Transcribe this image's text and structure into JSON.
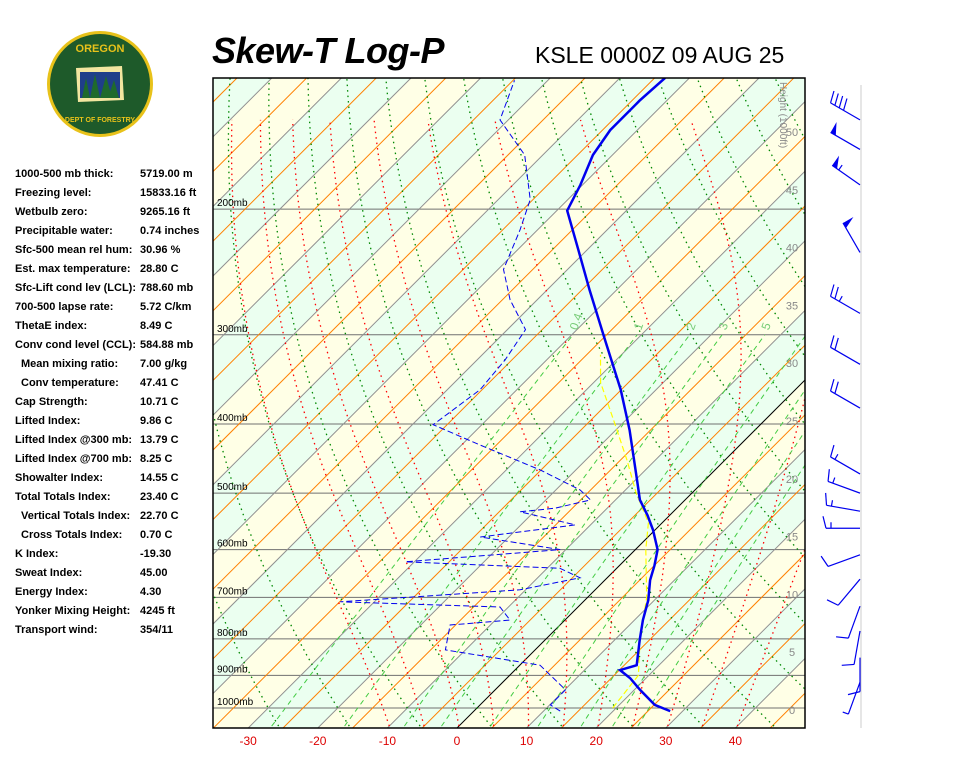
{
  "header": {
    "title": "Skew-T Log-P",
    "station": "KSLE 0000Z 09 AUG 25",
    "logo_text": "OREGON DEPARTMENT OF FORESTRY"
  },
  "stats": [
    {
      "label": "1000-500 mb thick:",
      "value": "5719.00 m"
    },
    {
      "label": "Freezing level:",
      "value": "15833.16 ft"
    },
    {
      "label": "Wetbulb zero:",
      "value": "9265.16 ft"
    },
    {
      "label": "Precipitable water:",
      "value": "0.74 inches"
    },
    {
      "label": "Sfc-500 mean rel hum:",
      "value": "30.96 %"
    },
    {
      "label": "Est. max temperature:",
      "value": "28.80 C"
    },
    {
      "label": "Sfc-Lift cond lev (LCL):",
      "value": "788.60 mb"
    },
    {
      "label": "700-500 lapse rate:",
      "value": "5.72 C/km"
    },
    {
      "label": "ThetaE index:",
      "value": "8.49 C"
    },
    {
      "label": "Conv cond level (CCL):",
      "value": "584.88 mb"
    },
    {
      "label": "Mean mixing ratio:",
      "value": "7.00 g/kg",
      "indent": true
    },
    {
      "label": "Conv temperature:",
      "value": "47.41 C",
      "indent": true
    },
    {
      "label": "Cap Strength:",
      "value": "10.71 C"
    },
    {
      "label": "Lifted Index:",
      "value": "9.86 C"
    },
    {
      "label": "Lifted Index @300 mb:",
      "value": "13.79 C"
    },
    {
      "label": "Lifted Index @700 mb:",
      "value": "8.25 C"
    },
    {
      "label": "Showalter Index:",
      "value": "14.55 C"
    },
    {
      "label": "Total Totals Index:",
      "value": "23.40 C"
    },
    {
      "label": "Vertical Totals Index:",
      "value": "22.70 C",
      "indent": true
    },
    {
      "label": "Cross Totals Index:",
      "value": "0.70 C",
      "indent": true
    },
    {
      "label": "K Index:",
      "value": "-19.30"
    },
    {
      "label": "Sweat Index:",
      "value": "45.00"
    },
    {
      "label": "Energy Index:",
      "value": "4.30"
    },
    {
      "label": "Yonker Mixing Height:",
      "value": "4245 ft"
    },
    {
      "label": "Transport wind:",
      "value": "354/11"
    }
  ],
  "chart_data": {
    "type": "line",
    "title": "Skew-T Log-P",
    "x_ticks": [
      "-30",
      "-20",
      "-10",
      "0",
      "10",
      "20",
      "30",
      "40"
    ],
    "x_tick_values": [
      -30,
      -20,
      -10,
      0,
      10,
      20,
      30,
      40
    ],
    "pressure_levels": [
      200,
      300,
      400,
      500,
      600,
      700,
      800,
      900,
      1000
    ],
    "pressure_labels": [
      "200mb",
      "300mb",
      "400mb",
      "500mb",
      "600mb",
      "700mb",
      "800mb",
      "900mb",
      "1000mb"
    ],
    "height_axis_label": "Height (1000ft)",
    "height_ticks": [
      "0",
      "5",
      "10",
      "15",
      "20",
      "25",
      "30",
      "35",
      "40",
      "45",
      "50"
    ],
    "mixing_ratio_labels": [
      "0.4",
      "1",
      "2",
      "3",
      "5"
    ],
    "mixing_ratio_values": [
      0.4,
      1,
      2,
      3,
      5
    ],
    "colors": {
      "temperature": "#0000ee",
      "dewpoint": "#0000ee",
      "parcel": "#ffff00",
      "isotherm": "#808080",
      "orange": "#ff8000",
      "dry_adiabat": "#008800",
      "moist": "#ff0000",
      "mixing": "#44cc44",
      "band1": "#ffffe6",
      "band2": "#ebfff0"
    },
    "series": [
      {
        "name": "temperature",
        "points": [
          [
            1010,
            28.2
          ],
          [
            990,
            25.1
          ],
          [
            943,
            20.8
          ],
          [
            908,
            17.7
          ],
          [
            885,
            15.1
          ],
          [
            871,
            16.8
          ],
          [
            803,
            13.6
          ],
          [
            753,
            11.2
          ],
          [
            706,
            9.1
          ],
          [
            662,
            6.5
          ],
          [
            631,
            5.0
          ],
          [
            600,
            3.2
          ],
          [
            563,
            -0.3
          ],
          [
            537,
            -3.2
          ],
          [
            511,
            -6.5
          ],
          [
            479,
            -9.8
          ],
          [
            408,
            -18.0
          ],
          [
            358,
            -25.1
          ],
          [
            305,
            -34.5
          ],
          [
            260,
            -43.8
          ],
          [
            228,
            -51.3
          ],
          [
            201,
            -58.5
          ],
          [
            185,
            -60.3
          ],
          [
            168,
            -62.8
          ],
          [
            155,
            -63.9
          ],
          [
            141,
            -63.9
          ],
          [
            131,
            -63.5
          ]
        ]
      },
      {
        "name": "dewpoint",
        "points": [
          [
            1010,
            12.4
          ],
          [
            990,
            10.1
          ],
          [
            943,
            10.1
          ],
          [
            871,
            2.9
          ],
          [
            829,
            -12.9
          ],
          [
            765,
            -15.8
          ],
          [
            753,
            -7.9
          ],
          [
            722,
            -11.2
          ],
          [
            710,
            -34.9
          ],
          [
            683,
            -10.8
          ],
          [
            657,
            -3.9
          ],
          [
            637,
            -8.2
          ],
          [
            624,
            -31.3
          ],
          [
            600,
            -10.8
          ],
          [
            576,
            -24.1
          ],
          [
            554,
            -12.2
          ],
          [
            531,
            -22.0
          ],
          [
            525,
            -17.5
          ],
          [
            511,
            -13.6
          ],
          [
            495,
            -16.5
          ],
          [
            464,
            -25.1
          ],
          [
            428,
            -37.4
          ],
          [
            401,
            -47.0
          ],
          [
            358,
            -45.3
          ],
          [
            325,
            -46.0
          ],
          [
            295,
            -47.4
          ],
          [
            268,
            -53.9
          ],
          [
            243,
            -59.2
          ],
          [
            214,
            -62.5
          ],
          [
            194,
            -65.4
          ],
          [
            168,
            -72.6
          ],
          [
            150,
            -81.2
          ],
          [
            132,
            -84.8
          ]
        ]
      },
      {
        "name": "parcel",
        "points": [
          [
            1000,
            19.5
          ],
          [
            900,
            18.5
          ],
          [
            800,
            13.5
          ],
          [
            700,
            8.5
          ],
          [
            600,
            1.5
          ],
          [
            550,
            -2
          ],
          [
            500,
            -8
          ],
          [
            450,
            -14
          ],
          [
            400,
            -21
          ],
          [
            350,
            -29
          ],
          [
            320,
            -33
          ]
        ]
      }
    ],
    "winds": [
      {
        "p": 150,
        "dir": 300,
        "spd": 40
      },
      {
        "p": 165,
        "dir": 300,
        "spd": 50
      },
      {
        "p": 185,
        "dir": 305,
        "spd": 55
      },
      {
        "p": 230,
        "dir": 330,
        "spd": 50
      },
      {
        "p": 280,
        "dir": 300,
        "spd": 25
      },
      {
        "p": 330,
        "dir": 300,
        "spd": 20
      },
      {
        "p": 380,
        "dir": 300,
        "spd": 20
      },
      {
        "p": 470,
        "dir": 300,
        "spd": 15
      },
      {
        "p": 500,
        "dir": 290,
        "spd": 15
      },
      {
        "p": 530,
        "dir": 280,
        "spd": 15
      },
      {
        "p": 560,
        "dir": 270,
        "spd": 15
      },
      {
        "p": 610,
        "dir": 250,
        "spd": 10
      },
      {
        "p": 660,
        "dir": 220,
        "spd": 10
      },
      {
        "p": 720,
        "dir": 200,
        "spd": 10
      },
      {
        "p": 780,
        "dir": 190,
        "spd": 10
      },
      {
        "p": 850,
        "dir": 180,
        "spd": 10
      },
      {
        "p": 920,
        "dir": 200,
        "spd": 5
      }
    ]
  }
}
